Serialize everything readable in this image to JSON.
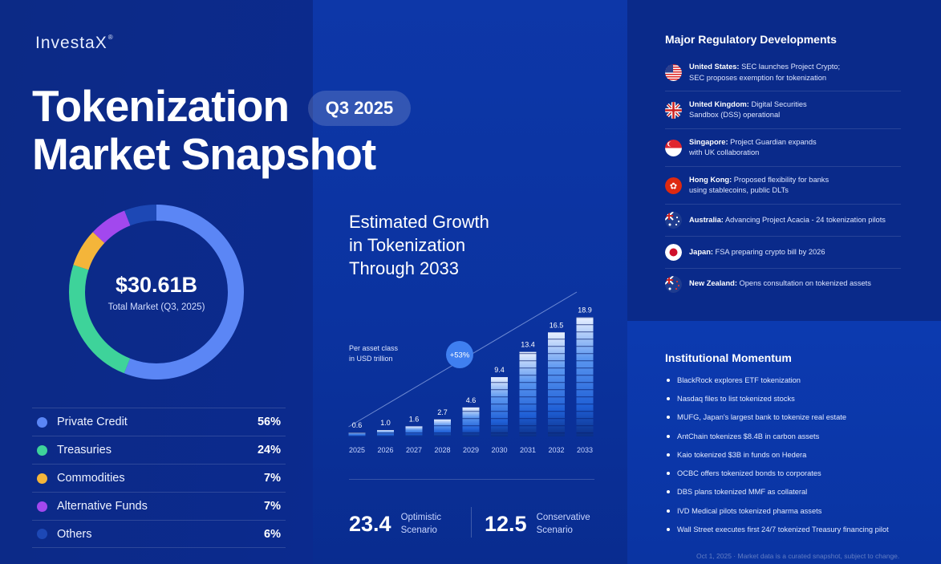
{
  "brand": {
    "logo": "InvestaX",
    "logo_mark": "®"
  },
  "header": {
    "title_line1": "Tokenization",
    "title_line2": "Market Snapshot",
    "badge": "Q3 2025"
  },
  "market": {
    "total": "$30.61B",
    "total_label": "Total Market (Q3, 2025)",
    "segments": [
      {
        "label": "Private Credit",
        "pct": "56%",
        "value": 56,
        "color": "#5b86f5"
      },
      {
        "label": "Treasuries",
        "pct": "24%",
        "value": 24,
        "color": "#3ed39a"
      },
      {
        "label": "Commodities",
        "pct": "7%",
        "value": 7,
        "color": "#f4b53a"
      },
      {
        "label": "Alternative Funds",
        "pct": "7%",
        "value": 7,
        "color": "#a248ee"
      },
      {
        "label": "Others",
        "pct": "6%",
        "value": 6,
        "color": "#1d48b5"
      }
    ]
  },
  "growth": {
    "title_line1": "Estimated Growth",
    "title_line2": "in Tokenization",
    "title_line3": "Through 2033",
    "note_line1": "Per asset class",
    "note_line2": "in USD trillion",
    "cagr": "+53%"
  },
  "chart_data": {
    "type": "bar",
    "title": "Estimated Growth in Tokenization Through 2033",
    "ylabel": "USD trillion",
    "categories": [
      "2025",
      "2026",
      "2027",
      "2028",
      "2029",
      "2030",
      "2031",
      "2032",
      "2033"
    ],
    "values": [
      0.6,
      1.0,
      1.6,
      2.7,
      4.6,
      9.4,
      13.4,
      16.5,
      18.9
    ],
    "labels": [
      "0.6",
      "1.0",
      "1.6",
      "2.7",
      "4.6",
      "9.4",
      "13.4",
      "16.5",
      "18.9"
    ],
    "ylim": [
      0,
      20
    ],
    "annotation": "+53%"
  },
  "scenarios": [
    {
      "value": "23.4",
      "label_line1": "Optimistic",
      "label_line2": "Scenario"
    },
    {
      "value": "12.5",
      "label_line1": "Conservative",
      "label_line2": "Scenario"
    }
  ],
  "regulatory": {
    "title": "Major Regulatory Developments",
    "items": [
      {
        "country": "United States:",
        "line1": " SEC launches Project Crypto;",
        "line2": "SEC proposes exemption for tokenization",
        "flag": "us-flag-icon"
      },
      {
        "country": "United Kingdom:",
        "line1": " Digital Securities",
        "line2": "Sandbox (DSS) operational",
        "flag": "uk-flag-icon"
      },
      {
        "country": "Singapore:",
        "line1": " Project Guardian expands",
        "line2": "with UK collaboration",
        "flag": "sg-flag-icon"
      },
      {
        "country": "Hong Kong:",
        "line1": " Proposed flexibility for banks",
        "line2": "using stablecoins, public DLTs",
        "flag": "hk-flag-icon"
      },
      {
        "country": "Australia:",
        "line1": " Advancing Project Acacia - 24 tokenization pilots",
        "line2": "",
        "flag": "au-flag-icon"
      },
      {
        "country": "Japan:",
        "line1": " FSA preparing crypto bill by 2026",
        "line2": "",
        "flag": "jp-flag-icon"
      },
      {
        "country": "New Zealand:",
        "line1": " Opens consultation on tokenized assets",
        "line2": "",
        "flag": "nz-flag-icon"
      }
    ]
  },
  "institutional": {
    "title": "Institutional Momentum",
    "items": [
      "BlackRock explores ETF tokenization",
      "Nasdaq files to list tokenized stocks",
      "MUFG, Japan's largest bank to tokenize real estate",
      "AntChain tokenizes $8.4B in carbon assets",
      "Kaio tokenized $3B in funds on Hedera",
      "OCBC offers tokenized bonds to corporates",
      "DBS plans tokenized MMF as collateral",
      "IVD Medical pilots tokenized pharma assets",
      "Wall Street executes first 24/7 tokenized Treasury financing pilot"
    ]
  },
  "footer": {
    "note": "Oct 1, 2025 · Market data is a curated snapshot, subject to change."
  }
}
